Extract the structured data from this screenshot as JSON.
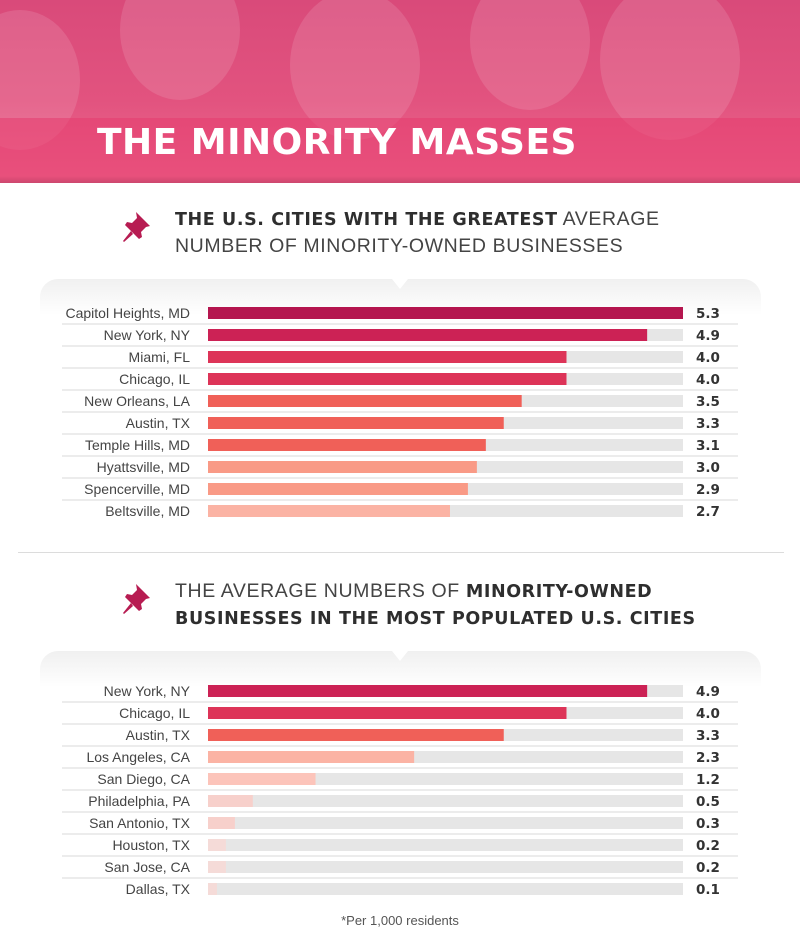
{
  "header": {
    "title": "THE MINORITY MASSES"
  },
  "section1": {
    "heading_line1_bold": "THE U.S. CITIES WITH THE GREATEST",
    "heading_line1_light": " AVERAGE",
    "heading_line2_light": "NUMBER OF MINORITY-OWNED BUSINESSES"
  },
  "section2": {
    "heading_line1_light": "THE AVERAGE NUMBERS OF ",
    "heading_line1_bold": "MINORITY-OWNED",
    "heading_line2_bold": "BUSINESSES IN THE MOST POPULATED U.S. CITIES"
  },
  "footnote": "*Per 1,000 residents",
  "colors": {
    "shades": [
      "#b5164f",
      "#cc2255",
      "#dd3458",
      "#f06058",
      "#f67b6a",
      "#f99a86",
      "#fbb3a4",
      "#fcc4ba",
      "#f7d0cb",
      "#f5dbd8"
    ],
    "track": "#e6e6e6",
    "row_line": "#d9d9d9",
    "pin": "#b71c52"
  },
  "chart_data": [
    {
      "type": "bar",
      "orientation": "horizontal",
      "title": "THE U.S. CITIES WITH THE GREATEST AVERAGE NUMBER OF MINORITY-OWNED BUSINESSES",
      "categories": [
        "Capitol Heights, MD",
        "New York, NY",
        "Miami, FL",
        "Chicago, IL",
        "New Orleans, LA",
        "Austin, TX",
        "Temple Hills, MD",
        "Hyattsville, MD",
        "Spencerville, MD",
        "Beltsville, MD"
      ],
      "values": [
        5.3,
        4.9,
        4.0,
        4.0,
        3.5,
        3.3,
        3.1,
        3.0,
        2.9,
        2.7
      ],
      "labels": [
        "5.3",
        "4.9",
        "4.0",
        "4.0",
        "3.5",
        "3.3",
        "3.1",
        "3.0",
        "2.9",
        "2.7"
      ],
      "shade_index": [
        0,
        1,
        2,
        2,
        3,
        3,
        3,
        5,
        5,
        6
      ],
      "xlim": [
        0,
        5.3
      ]
    },
    {
      "type": "bar",
      "orientation": "horizontal",
      "title": "THE AVERAGE NUMBERS OF MINORITY-OWNED BUSINESSES IN THE MOST POPULATED U.S. CITIES",
      "categories": [
        "New York, NY",
        "Chicago, IL",
        "Austin, TX",
        "Los Angeles, CA",
        "San Diego, CA",
        "Philadelphia, PA",
        "San Antonio, TX",
        "Houston, TX",
        "San Jose, CA",
        "Dallas, TX"
      ],
      "values": [
        4.9,
        4.0,
        3.3,
        2.3,
        1.2,
        0.5,
        0.3,
        0.2,
        0.2,
        0.1
      ],
      "labels": [
        "4.9",
        "4.0",
        "3.3",
        "2.3",
        "1.2",
        "0.5",
        "0.3",
        "0.2",
        "0.2",
        "0.1"
      ],
      "shade_index": [
        1,
        2,
        3,
        6,
        7,
        8,
        8,
        9,
        9,
        9
      ],
      "xlim": [
        0,
        5.3
      ]
    }
  ]
}
